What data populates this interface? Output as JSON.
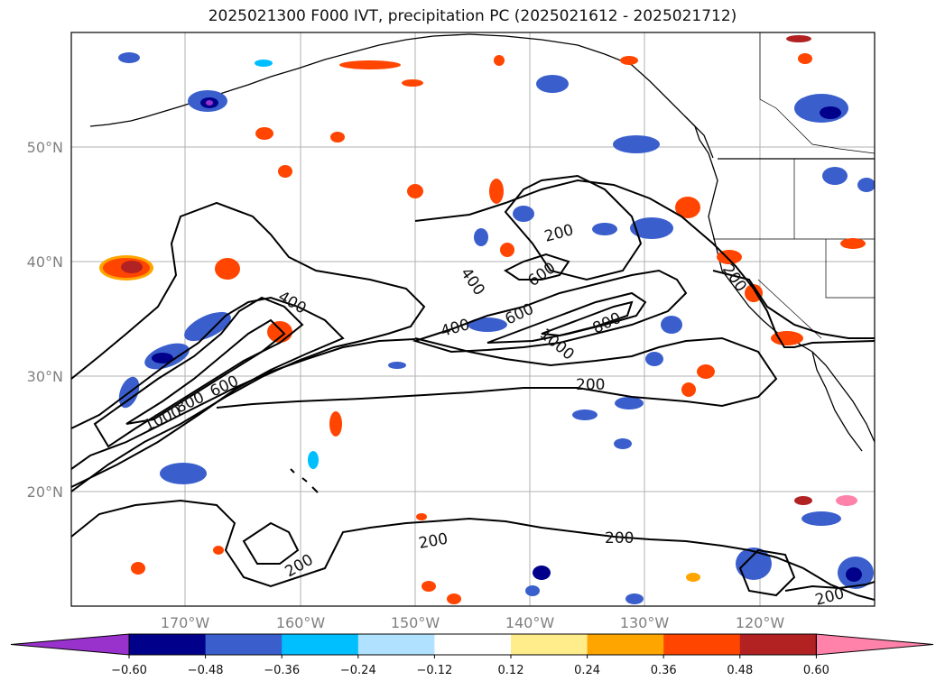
{
  "title": "2025021300 F000 IVT, precipitation PC (2025021612 - 2025021712)",
  "map": {
    "lat_labels": [
      "50°N",
      "40°N",
      "30°N",
      "20°N"
    ],
    "lon_labels": [
      "170°W",
      "160°W",
      "150°W",
      "140°W",
      "130°W",
      "120°W"
    ],
    "contour_labels": [
      {
        "text": "200",
        "ref": "c1"
      },
      {
        "text": "400",
        "ref": "c2"
      },
      {
        "text": "600",
        "ref": "c3"
      },
      {
        "text": "400",
        "ref": "c4"
      },
      {
        "text": "400",
        "ref": "c5"
      },
      {
        "text": "600",
        "ref": "c6"
      },
      {
        "text": "800",
        "ref": "c7"
      },
      {
        "text": "1000",
        "ref": "c8"
      },
      {
        "text": "200",
        "ref": "c9"
      },
      {
        "text": "1000",
        "ref": "c10"
      },
      {
        "text": "800",
        "ref": "c11"
      },
      {
        "text": "600",
        "ref": "c12"
      },
      {
        "text": "200",
        "ref": "c13"
      },
      {
        "text": "200",
        "ref": "c14"
      },
      {
        "text": "200",
        "ref": "c15"
      },
      {
        "text": "200",
        "ref": "c16"
      },
      {
        "text": "200",
        "ref": "c17"
      }
    ]
  },
  "colorbar": {
    "ticks": [
      "−0.60",
      "−0.48",
      "−0.36",
      "−0.24",
      "−0.12",
      "0.12",
      "0.24",
      "0.36",
      "0.48",
      "0.60"
    ],
    "colors": [
      "#9932cc",
      "#00008b",
      "#3a5fcd",
      "#00bfff",
      "#b0e2ff",
      "#ffffff",
      "#ffec8b",
      "#ffa500",
      "#ff4500",
      "#b22222",
      "#ff82ab"
    ]
  }
}
